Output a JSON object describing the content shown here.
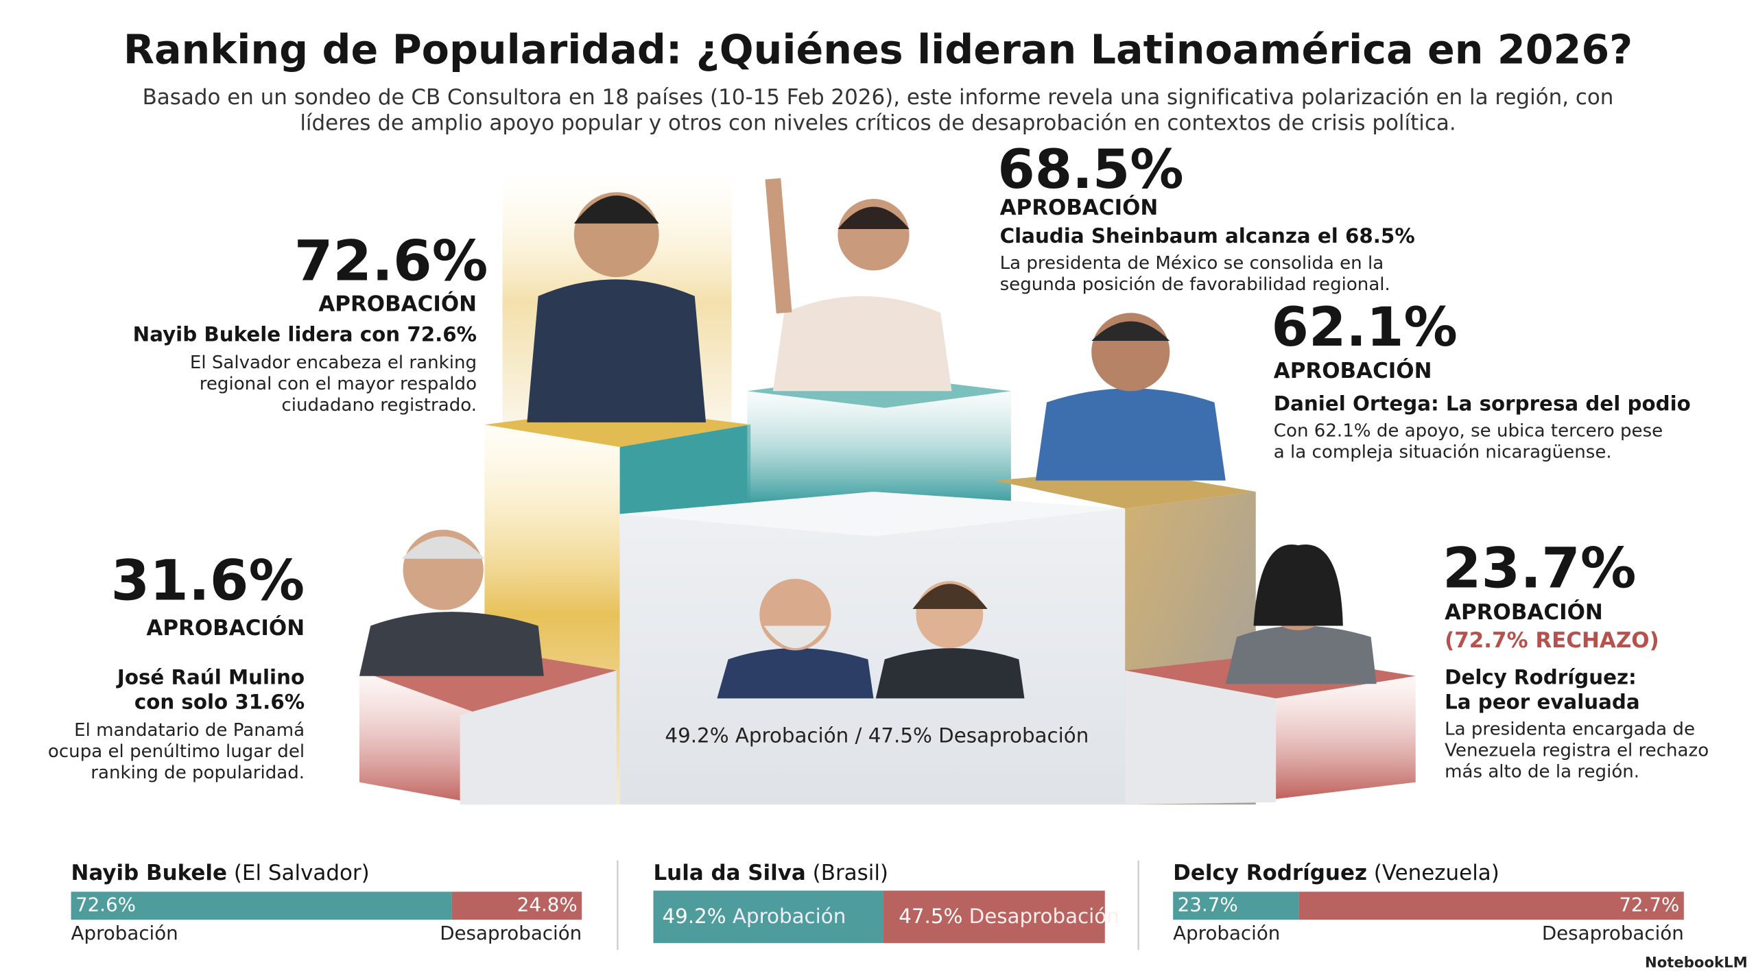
{
  "header": {
    "title": "Ranking de Popularidad: ¿Quiénes lideran Latinoamérica en 2026?",
    "subtitle": [
      "Basado en un sondeo de CB Consultora en 18 países (10-15 Feb 2026), este informe revela una significativa polarización en la región, con",
      "líderes de amplio apoyo popular y otros con niveles críticos de desaprobación en contextos de crisis política."
    ]
  },
  "leaders": [
    {
      "percent": "72.6%",
      "label": "APROBACIÓN",
      "headline": [
        "Nayib Bukele lidera con 72.6%"
      ],
      "description": [
        "El Salvador encabeza el ranking",
        "regional con el mayor respaldo",
        "ciudadano registrado."
      ]
    },
    {
      "percent": "68.5%",
      "label": "APROBACIÓN",
      "headline": [
        "Claudia Sheinbaum alcanza el 68.5%"
      ],
      "description": [
        "La presidenta de México se consolida en la",
        "segunda posición de favorabilidad regional."
      ]
    },
    {
      "percent": "62.1%",
      "label": "APROBACIÓN",
      "headline": [
        "Daniel Ortega: La sorpresa del podio"
      ],
      "description": [
        "Con 62.1% de apoyo, se ubica tercero pese",
        "a la compleja situación nicaragüense."
      ]
    },
    {
      "percent": "31.6%",
      "label": "APROBACIÓN",
      "headline": [
        "José Raúl Mulino",
        "con solo 31.6%"
      ],
      "description": [
        "El mandatario de Panamá",
        "ocupa el penúltimo lugar del",
        "ranking de popularidad."
      ]
    },
    {
      "percent": "23.7%",
      "label": "APROBACIÓN",
      "extra": "(72.7% RECHAZO)",
      "headline": [
        "Delcy Rodríguez:",
        "La peor evaluada"
      ],
      "description": [
        "La presidenta encargada de",
        "Venezuela registra el rechazo",
        "más alto de la región."
      ]
    }
  ],
  "center_caption": "49.2% Aprobación / 47.5% Desaprobación",
  "comparisons": [
    {
      "name": "Nayib Bukele",
      "country": "(El Salvador)",
      "approval": {
        "value": 72.6,
        "label": "72.6%"
      },
      "disapproval": {
        "value": 24.8,
        "label": "24.8%"
      },
      "approval_text": "Aprobación",
      "disapproval_text": "Desaprobación"
    },
    {
      "name": "Lula da Silva",
      "country": "(Brasil)",
      "approval": {
        "value": 49.2,
        "label": "49.2%"
      },
      "disapproval": {
        "value": 47.5,
        "label": "47.5%"
      },
      "approval_text": "Aprobación",
      "disapproval_text": "Desaprobación"
    },
    {
      "name": "Delcy Rodríguez",
      "country": "(Venezuela)",
      "approval": {
        "value": 23.7,
        "label": "23.7%"
      },
      "disapproval": {
        "value": 72.7,
        "label": "72.7%"
      },
      "approval_text": "Aprobación",
      "disapproval_text": "Desaprobación"
    }
  ],
  "footer": {
    "brand": "NotebookLM"
  }
}
